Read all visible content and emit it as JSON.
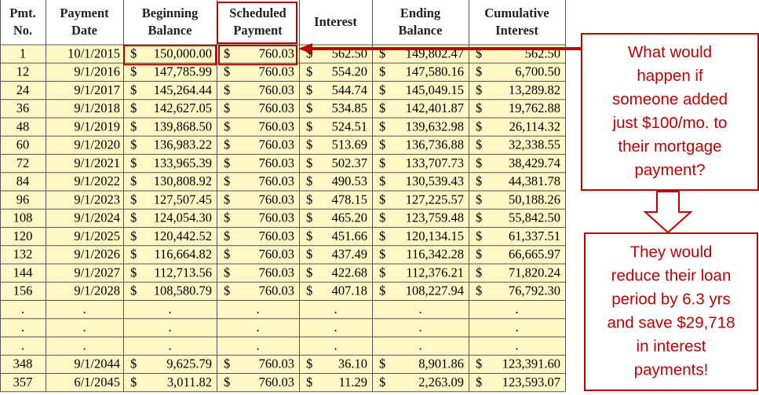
{
  "table": {
    "currency": "$",
    "headers": [
      [
        "Pmt.",
        "No."
      ],
      [
        "Payment",
        "Date"
      ],
      [
        "Beginning",
        "Balance"
      ],
      [
        "Scheduled",
        "Payment"
      ],
      [
        "Interest"
      ],
      [
        "Ending",
        "Balance"
      ],
      [
        "Cumulative",
        "Interest"
      ]
    ],
    "rows": [
      [
        "1",
        "10/1/2015",
        "150,000.00",
        "760.03",
        "562.50",
        "149,802.47",
        "562.50"
      ],
      [
        "12",
        "9/1/2016",
        "147,785.99",
        "760.03",
        "554.20",
        "147,580.16",
        "6,700.50"
      ],
      [
        "24",
        "9/1/2017",
        "145,264.44",
        "760.03",
        "544.74",
        "145,049.15",
        "13,289.82"
      ],
      [
        "36",
        "9/1/2018",
        "142,627.05",
        "760.03",
        "534.85",
        "142,401.87",
        "19,762.88"
      ],
      [
        "48",
        "9/1/2019",
        "139,868.50",
        "760.03",
        "524.51",
        "139,632.98",
        "26,114.32"
      ],
      [
        "60",
        "9/1/2020",
        "136,983.22",
        "760.03",
        "513.69",
        "136,736.88",
        "32,338.55"
      ],
      [
        "72",
        "9/1/2021",
        "133,965.39",
        "760.03",
        "502.37",
        "133,707.73",
        "38,429.74"
      ],
      [
        "84",
        "9/1/2022",
        "130,808.92",
        "760.03",
        "490.53",
        "130,539.43",
        "44,381.78"
      ],
      [
        "96",
        "9/1/2023",
        "127,507.45",
        "760.03",
        "478.15",
        "127,225.57",
        "50,188.26"
      ],
      [
        "108",
        "9/1/2024",
        "124,054.30",
        "760.03",
        "465.20",
        "123,759.48",
        "55,842.50"
      ],
      [
        "120",
        "9/1/2025",
        "120,442.52",
        "760.03",
        "451.66",
        "120,134.15",
        "61,337.51"
      ],
      [
        "132",
        "9/1/2026",
        "116,664.82",
        "760.03",
        "437.49",
        "116,342.28",
        "66,665.97"
      ],
      [
        "144",
        "9/1/2027",
        "112,713.56",
        "760.03",
        "422.68",
        "112,376.21",
        "71,820.24"
      ],
      [
        "156",
        "9/1/2028",
        "108,580.79",
        "760.03",
        "407.18",
        "108,227.94",
        "76,792.30"
      ],
      [
        ".",
        ".",
        ".",
        ".",
        ".",
        ".",
        "."
      ],
      [
        ".",
        ".",
        ".",
        ".",
        ".",
        ".",
        "."
      ],
      [
        ".",
        ".",
        ".",
        ".",
        ".",
        ".",
        "."
      ],
      [
        "348",
        "9/1/2044",
        "9,625.79",
        "760.03",
        "36.10",
        "8,901.86",
        "123,391.60"
      ],
      [
        "357",
        "6/1/2045",
        "3,011.82",
        "760.03",
        "11.29",
        "2,263.09",
        "123,593.07"
      ]
    ]
  },
  "callouts": [
    {
      "lines": [
        "What would",
        "happen if",
        "someone added",
        "just $100/mo. to",
        "their mortgage",
        "payment?"
      ]
    },
    {
      "lines": [
        "They would",
        "reduce their loan",
        "period by 6.3 yrs",
        "and save $29,718",
        "in interest",
        "payments!"
      ]
    }
  ]
}
